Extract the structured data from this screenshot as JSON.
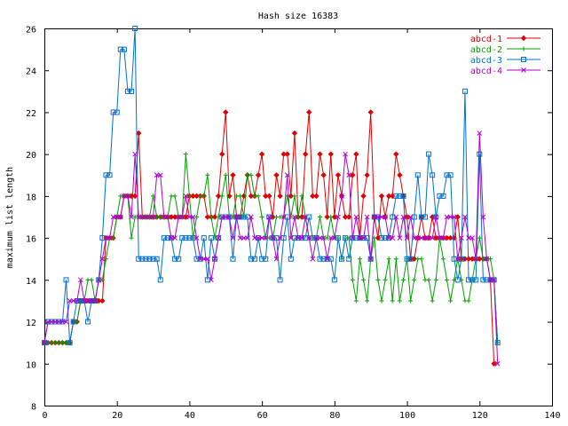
{
  "chart_data": {
    "type": "line",
    "title": "Hash size 16383",
    "xlabel": "",
    "ylabel": "maximum list length",
    "xlim": [
      0,
      140
    ],
    "ylim": [
      8,
      26
    ],
    "xticks": [
      "0",
      "20",
      "40",
      "60",
      "80",
      "100",
      "120",
      "140"
    ],
    "yticks": [
      "8",
      "10",
      "12",
      "14",
      "16",
      "18",
      "20",
      "22",
      "24",
      "26"
    ],
    "grid": false,
    "legend_position": "top-right",
    "series": [
      {
        "name": "abcd-1",
        "color": "#e00000",
        "marker": "diamond",
        "values": [
          11,
          11,
          11,
          11,
          11,
          11,
          11,
          11,
          12,
          12,
          13,
          13,
          13,
          13,
          13,
          13,
          13,
          16,
          16,
          16,
          17,
          17,
          18,
          18,
          18,
          18,
          21,
          17,
          17,
          17,
          17,
          17,
          17,
          17,
          17,
          17,
          17,
          17,
          17,
          17,
          18,
          18,
          18,
          18,
          18,
          17,
          17,
          17,
          18,
          20,
          22,
          18,
          19,
          17,
          17,
          18,
          19,
          18,
          18,
          19,
          20,
          18,
          18,
          17,
          19,
          18,
          20,
          20,
          18,
          21,
          17,
          17,
          20,
          22,
          18,
          18,
          20,
          19,
          17,
          20,
          17,
          19,
          18,
          17,
          17,
          19,
          20,
          16,
          18,
          19,
          22,
          17,
          16,
          18,
          17,
          18,
          18,
          20,
          19,
          18,
          17,
          15,
          15,
          16,
          17,
          16,
          16,
          17,
          16,
          16,
          16,
          16,
          16,
          16,
          17,
          15,
          15,
          15,
          15,
          15,
          15,
          15,
          15,
          14,
          10
        ]
      },
      {
        "name": "abcd-2",
        "color": "#00a000",
        "marker": "plus",
        "values": [
          11,
          11,
          11,
          11,
          11,
          11,
          11,
          11,
          12,
          12,
          13,
          13,
          14,
          14,
          13,
          14,
          14,
          15,
          16,
          16,
          17,
          18,
          18,
          18,
          16,
          17,
          17,
          17,
          17,
          17,
          18,
          17,
          17,
          17,
          17,
          18,
          18,
          17,
          17,
          20,
          18,
          16,
          17,
          18,
          18,
          19,
          17,
          16,
          17,
          18,
          19,
          17,
          17,
          18,
          18,
          17,
          19,
          19,
          18,
          18,
          17,
          16,
          16,
          16,
          17,
          17,
          17,
          18,
          17,
          18,
          17,
          18,
          17,
          16,
          16,
          16,
          17,
          16,
          16,
          17,
          16,
          16,
          15,
          16,
          16,
          14,
          13,
          15,
          14,
          13,
          15,
          16,
          14,
          13,
          14,
          15,
          13,
          15,
          13,
          14,
          15,
          13,
          14,
          15,
          15,
          14,
          14,
          13,
          14,
          16,
          15,
          14,
          13,
          14,
          15,
          14,
          13,
          13,
          14,
          15,
          16,
          15,
          15,
          15,
          14,
          11
        ]
      },
      {
        "name": "abcd-3",
        "color": "#0070d0",
        "marker": "square",
        "values": [
          11,
          12,
          12,
          12,
          12,
          12,
          14,
          11,
          12,
          13,
          13,
          13,
          12,
          13,
          13,
          14,
          16,
          19,
          19,
          22,
          22,
          25,
          25,
          23,
          23,
          26,
          15,
          15,
          15,
          15,
          15,
          15,
          14,
          16,
          16,
          16,
          15,
          15,
          16,
          16,
          16,
          16,
          15,
          15,
          16,
          14,
          16,
          15,
          16,
          17,
          17,
          17,
          15,
          17,
          17,
          17,
          17,
          15,
          15,
          16,
          15,
          15,
          17,
          16,
          16,
          14,
          16,
          17,
          15,
          16,
          16,
          16,
          16,
          17,
          16,
          16,
          15,
          15,
          15,
          15,
          14,
          16,
          15,
          16,
          15,
          16,
          16,
          16,
          16,
          16,
          15,
          17,
          17,
          16,
          16,
          16,
          17,
          18,
          18,
          18,
          15,
          15,
          17,
          19,
          17,
          17,
          20,
          19,
          17,
          18,
          18,
          19,
          19,
          15,
          14,
          15,
          23,
          14,
          14,
          14,
          20,
          14,
          14,
          14,
          14,
          11
        ]
      },
      {
        "name": "abcd-4",
        "color": "#b000d0",
        "marker": "x",
        "values": [
          11,
          12,
          12,
          12,
          12,
          12,
          12,
          13,
          13,
          13,
          14,
          13,
          13,
          13,
          13,
          14,
          15,
          16,
          16,
          17,
          17,
          17,
          18,
          18,
          17,
          20,
          17,
          17,
          17,
          17,
          17,
          19,
          19,
          17,
          17,
          16,
          16,
          17,
          17,
          18,
          17,
          17,
          16,
          15,
          15,
          15,
          14,
          15,
          16,
          17,
          17,
          17,
          16,
          17,
          16,
          16,
          16,
          17,
          16,
          16,
          16,
          16,
          17,
          16,
          15,
          16,
          17,
          19,
          16,
          17,
          16,
          16,
          17,
          16,
          15,
          16,
          16,
          16,
          15,
          16,
          16,
          17,
          18,
          20,
          19,
          16,
          17,
          16,
          16,
          17,
          15,
          17,
          17,
          17,
          17,
          16,
          16,
          17,
          16,
          17,
          16,
          17,
          16,
          16,
          16,
          16,
          16,
          16,
          17,
          16,
          16,
          17,
          17,
          17,
          15,
          16,
          17,
          16,
          16,
          15,
          21,
          17,
          15,
          14,
          14,
          10
        ]
      }
    ]
  }
}
